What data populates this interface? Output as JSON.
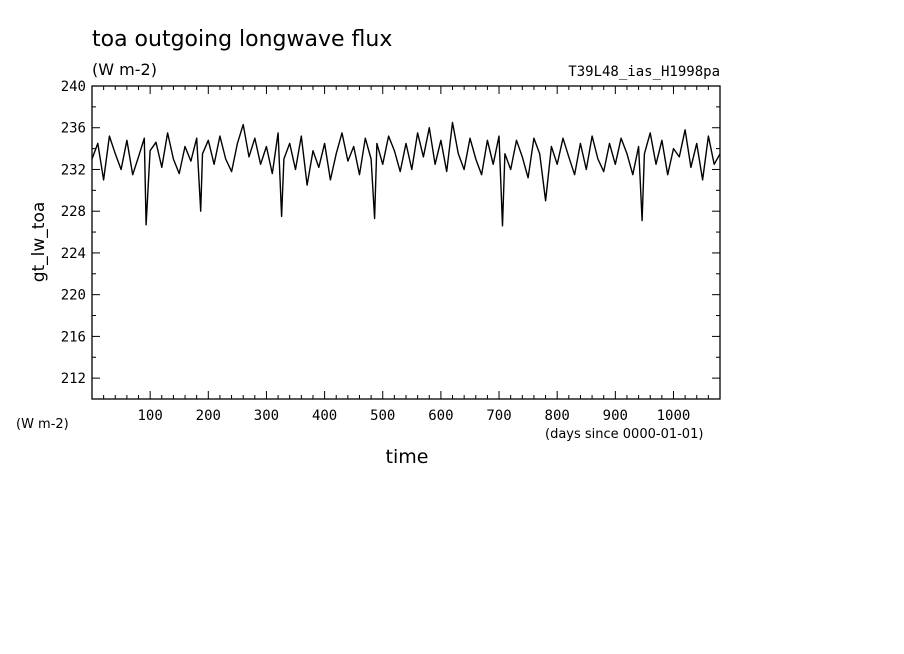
{
  "chart_data": {
    "type": "line",
    "title": "toa outgoing longwave flux",
    "units": "(W m-2)",
    "run_label": "T39L48_ias_H1998pa",
    "ylabel": "gt_lw_toa",
    "ylabel_units": "(W m-2)",
    "xlabel": "time",
    "x_units": "(days since 0000-01-01)",
    "xlim": [
      0,
      1080
    ],
    "ylim": [
      210,
      240
    ],
    "x_ticks": [
      100,
      200,
      300,
      400,
      500,
      600,
      700,
      800,
      900,
      1000
    ],
    "y_ticks": [
      212,
      216,
      220,
      224,
      228,
      232,
      236,
      240
    ],
    "grid": false,
    "series": [
      {
        "x": [
          0,
          10,
          20,
          30,
          40,
          50,
          60,
          70,
          80,
          90,
          93,
          100,
          110,
          120,
          130,
          140,
          150,
          160,
          170,
          180,
          187,
          190,
          200,
          210,
          220,
          230,
          240,
          250,
          260,
          270,
          280,
          290,
          300,
          310,
          320,
          326,
          330,
          340,
          350,
          360,
          370,
          380,
          390,
          400,
          410,
          420,
          430,
          440,
          450,
          460,
          470,
          480,
          486,
          490,
          500,
          510,
          520,
          530,
          540,
          550,
          560,
          570,
          580,
          590,
          600,
          610,
          620,
          630,
          640,
          650,
          660,
          670,
          680,
          690,
          700,
          706,
          710,
          720,
          730,
          740,
          750,
          760,
          770,
          780,
          790,
          800,
          810,
          820,
          830,
          840,
          850,
          860,
          870,
          880,
          890,
          900,
          910,
          920,
          930,
          940,
          946,
          950,
          960,
          970,
          980,
          990,
          1000,
          1010,
          1020,
          1030,
          1040,
          1050,
          1060,
          1070,
          1080
        ],
        "values": [
          233.0,
          234.5,
          231.0,
          235.2,
          233.5,
          232.0,
          234.8,
          231.5,
          233.2,
          235.0,
          226.7,
          233.8,
          234.6,
          232.2,
          235.5,
          233.0,
          231.6,
          234.2,
          232.8,
          235.0,
          228.0,
          233.5,
          234.8,
          232.5,
          235.2,
          233.0,
          231.8,
          234.5,
          236.3,
          233.2,
          235.0,
          232.5,
          234.2,
          231.6,
          235.5,
          227.5,
          233.0,
          234.5,
          232.0,
          235.2,
          230.5,
          233.8,
          232.2,
          234.5,
          231.0,
          233.5,
          235.5,
          232.8,
          234.2,
          231.5,
          235.0,
          233.0,
          227.3,
          234.5,
          232.5,
          235.2,
          233.8,
          231.8,
          234.5,
          232.0,
          235.5,
          233.2,
          236.0,
          232.5,
          234.8,
          231.8,
          236.5,
          233.5,
          232.0,
          235.0,
          233.0,
          231.5,
          234.8,
          232.5,
          235.2,
          226.6,
          233.5,
          232.0,
          234.8,
          233.2,
          231.2,
          235.0,
          233.5,
          229.0,
          234.2,
          232.5,
          235.0,
          233.2,
          231.5,
          234.5,
          232.0,
          235.2,
          233.0,
          231.8,
          234.5,
          232.5,
          235.0,
          233.5,
          231.5,
          234.2,
          227.1,
          233.5,
          235.5,
          232.5,
          234.8,
          231.5,
          234.0,
          233.2,
          235.8,
          232.2,
          234.5,
          231.0,
          235.2,
          232.5,
          233.5
        ]
      }
    ]
  }
}
